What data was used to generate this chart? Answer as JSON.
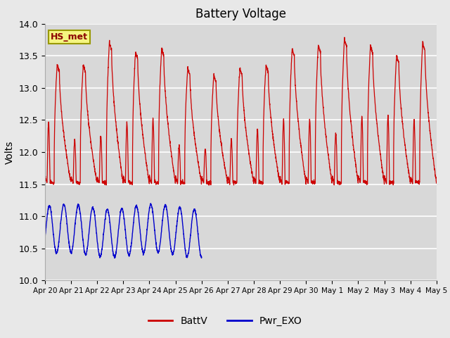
{
  "title": "Battery Voltage",
  "ylabel": "Volts",
  "ylim": [
    10.0,
    14.0
  ],
  "background_color": "#e8e8e8",
  "plot_bg_color": "#d8d8d8",
  "grid_color": "#ffffff",
  "red_color": "#cc0000",
  "blue_color": "#0000cc",
  "legend_labels": [
    "BattV",
    "Pwr_EXO"
  ],
  "station_label": "HS_met",
  "x_tick_labels": [
    "Apr 20",
    "Apr 21",
    "Apr 22",
    "Apr 23",
    "Apr 24",
    "Apr 25",
    "Apr 26",
    "Apr 27",
    "Apr 28",
    "Apr 29",
    "Apr 30",
    "May 1",
    "May 2",
    "May 3",
    "May 4",
    "May 5"
  ],
  "x_tick_positions": [
    0,
    1,
    2,
    3,
    4,
    5,
    6,
    7,
    8,
    9,
    10,
    11,
    12,
    13,
    14,
    15
  ],
  "ytick_vals": [
    10.0,
    10.5,
    11.0,
    11.5,
    12.0,
    12.5,
    13.0,
    13.5,
    14.0
  ],
  "n_days": 15,
  "n_blue_days": 6,
  "blue_min": 10.4,
  "blue_max": 11.15,
  "peak_vals": [
    13.35,
    13.35,
    13.7,
    13.55,
    13.6,
    13.3,
    13.2,
    13.3,
    13.35,
    13.6,
    13.65,
    13.75,
    13.65,
    13.5,
    13.7
  ],
  "mid_peaks": [
    12.45,
    12.2,
    12.25,
    12.45,
    12.5,
    12.1,
    12.05,
    12.2,
    12.35,
    12.5,
    12.5,
    12.3,
    12.55,
    12.55,
    12.5
  ],
  "base": 11.52
}
